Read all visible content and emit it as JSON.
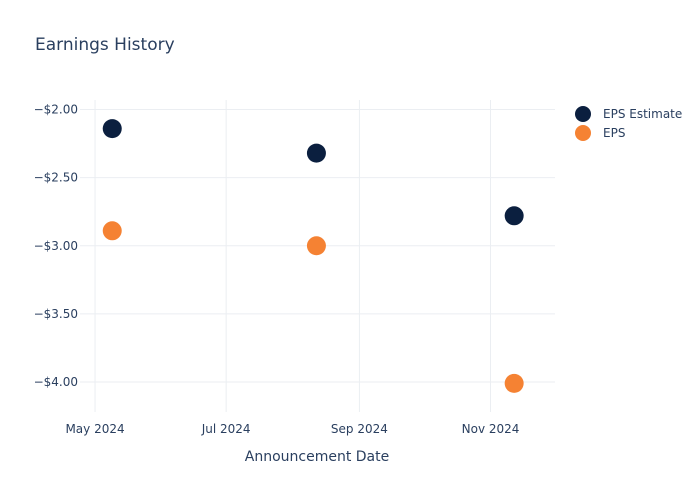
{
  "chart_data": {
    "type": "scatter",
    "title": "Earnings History",
    "xlabel": "Announcement Date",
    "ylabel": "",
    "x_ticks": [
      "May 2024",
      "Jul 2024",
      "Sep 2024",
      "Nov 2024"
    ],
    "y_ticks": [
      "−$2.00",
      "−$2.50",
      "−$3.00",
      "−$3.50",
      "−$4.00"
    ],
    "y_tick_values": [
      -2.0,
      -2.5,
      -3.0,
      -3.5,
      -4.0
    ],
    "x_tick_dates": [
      "2024-05-01",
      "2024-07-01",
      "2024-09-01",
      "2024-11-01"
    ],
    "xlim": [
      "2024-04-24",
      "2024-12-01"
    ],
    "ylim": [
      -4.22,
      -1.93
    ],
    "grid": true,
    "legend_position": "top-right",
    "series": [
      {
        "name": "EPS Estimate",
        "color": "#0b1f3f",
        "points": [
          {
            "x": "2024-05-09",
            "y": -2.14
          },
          {
            "x": "2024-08-12",
            "y": -2.32
          },
          {
            "x": "2024-11-12",
            "y": -2.78
          }
        ]
      },
      {
        "name": "EPS",
        "color": "#f58233",
        "points": [
          {
            "x": "2024-05-09",
            "y": -2.89
          },
          {
            "x": "2024-08-12",
            "y": -3.0
          },
          {
            "x": "2024-11-12",
            "y": -4.01
          }
        ]
      }
    ]
  }
}
